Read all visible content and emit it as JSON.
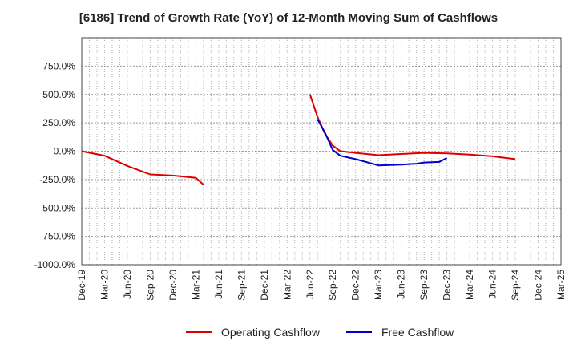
{
  "chart_data": {
    "type": "line",
    "title": "[6186]  Trend of Growth Rate (YoY) of 12-Month Moving Sum of Cashflows",
    "xlabel": "",
    "ylabel": "",
    "ylim": [
      -1000,
      1000
    ],
    "y_ticks": [
      "750.0%",
      "500.0%",
      "250.0%",
      "0.0%",
      "-250.0%",
      "-500.0%",
      "-750.0%",
      "-1000.0%"
    ],
    "y_tick_values": [
      750,
      500,
      250,
      0,
      -250,
      -500,
      -750,
      -1000
    ],
    "x_ticks": [
      "Dec-19",
      "Mar-20",
      "Jun-20",
      "Sep-20",
      "Dec-20",
      "Mar-21",
      "Jun-21",
      "Sep-21",
      "Dec-21",
      "Mar-22",
      "Jun-22",
      "Sep-22",
      "Dec-22",
      "Mar-23",
      "Jun-23",
      "Sep-23",
      "Dec-23",
      "Mar-24",
      "Jun-24",
      "Sep-24",
      "Dec-24",
      "Mar-25"
    ],
    "grid": true,
    "legend_position": "bottom",
    "series": [
      {
        "name": "Operating Cashflow",
        "color": "#dd0000",
        "segments": [
          [
            [
              "Dec-19",
              0
            ],
            [
              "Mar-20",
              -40
            ],
            [
              "Jun-20",
              -130
            ],
            [
              "Sep-20",
              -205
            ],
            [
              "Dec-20",
              -215
            ],
            [
              "Mar-21",
              -235
            ],
            [
              "Apr-21",
              -295
            ]
          ],
          [
            [
              "Jun-22",
              500
            ],
            [
              "Jul-22",
              300
            ],
            [
              "Aug-22",
              150
            ],
            [
              "Sep-22",
              50
            ],
            [
              "Oct-22",
              0
            ],
            [
              "Dec-22",
              -15
            ],
            [
              "Mar-23",
              -35
            ],
            [
              "Jun-23",
              -25
            ],
            [
              "Sep-23",
              -15
            ],
            [
              "Dec-23",
              -20
            ],
            [
              "Mar-24",
              -30
            ],
            [
              "Jun-24",
              -45
            ],
            [
              "Sep-24",
              -70
            ]
          ]
        ]
      },
      {
        "name": "Free Cashflow",
        "color": "#0000cc",
        "segments": [
          [
            [
              "Jul-22",
              280
            ],
            [
              "Aug-22",
              160
            ],
            [
              "Sep-22",
              10
            ],
            [
              "Oct-22",
              -40
            ],
            [
              "Dec-22",
              -70
            ],
            [
              "Mar-23",
              -125
            ],
            [
              "Jun-23",
              -118
            ],
            [
              "Aug-23",
              -110
            ],
            [
              "Sep-23",
              -100
            ],
            [
              "Nov-23",
              -95
            ],
            [
              "Dec-23",
              -60
            ]
          ]
        ]
      }
    ]
  }
}
